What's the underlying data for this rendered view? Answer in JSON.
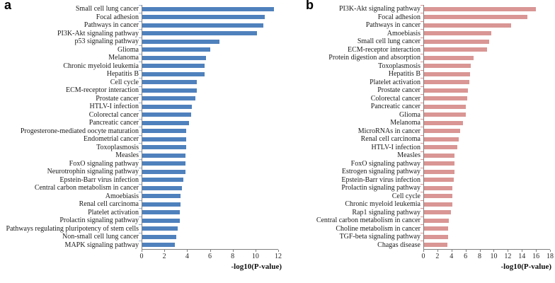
{
  "chart_data": [
    {
      "type": "bar",
      "orientation": "horizontal",
      "panel_label": "a",
      "xlabel": "-log10(P-value)",
      "xlim": [
        0,
        12
      ],
      "x_ticks": [
        0,
        2,
        4,
        6,
        8,
        10,
        12
      ],
      "bar_color": "#4f81bd",
      "category_tick_color": "#9ab3d2",
      "grid": false,
      "legend": null,
      "categories": [
        "Small cell lung cancer",
        "Focal adhesion",
        "Pathways in cancer",
        "PI3K-Akt signaling pathway",
        "p53 signaling pathway",
        "Glioma",
        "Melanoma",
        "Chronic myeloid leukemia",
        "Hepatitis B",
        "Cell cycle",
        "ECM-receptor interaction",
        "Prostate cancer",
        "HTLV-I infection",
        "Colorectal cancer",
        "Pancreatic cancer",
        "Progesterone-mediated oocyte maturation",
        "Endometrial cancer",
        "Toxoplasmosis",
        "Measles",
        "FoxO signaling pathway",
        "Neurotrophin signaling pathway",
        "Epstein-Barr virus infection",
        "Central carbon metabolism in cancer",
        "Amoebiasis",
        "Renal cell carcinoma",
        "Platelet activation",
        "Prolactin signaling pathway",
        "Pathways regulating pluripotency of stem cells",
        "Non-small cell lung cancer",
        "MAPK signaling pathway"
      ],
      "values": [
        11.6,
        10.8,
        10.7,
        10.1,
        6.8,
        6.0,
        5.6,
        5.5,
        5.5,
        4.8,
        4.8,
        4.7,
        4.4,
        4.3,
        4.1,
        3.9,
        3.9,
        3.9,
        3.8,
        3.8,
        3.8,
        3.6,
        3.5,
        3.4,
        3.4,
        3.3,
        3.3,
        3.1,
        3.0,
        2.9
      ]
    },
    {
      "type": "bar",
      "orientation": "horizontal",
      "panel_label": "b",
      "xlabel": "-log10(P-value)",
      "xlim": [
        0,
        18
      ],
      "x_ticks": [
        0,
        2,
        4,
        6,
        8,
        10,
        12,
        14,
        16,
        18
      ],
      "bar_color": "#d99694",
      "category_tick_color": "#d99694",
      "grid": false,
      "legend": null,
      "categories": [
        "PI3K-Akt signaling pathway",
        "Focal adhesion",
        "Pathways in cancer",
        "Amoebiasis",
        "Small cell lung cancer",
        "ECM-receptor interaction",
        "Protein digestion and absorption",
        "Toxoplasmosis",
        "Hepatitis B",
        "Platelet activation",
        "Prostate cancer",
        "Colorectal cancer",
        "Pancreatic cancer",
        "Glioma",
        "Melanoma",
        "MicroRNAs in cancer",
        "Renal cell carcinoma",
        "HTLV-I infection",
        "Measles",
        "FoxO signaling pathway",
        "Estrogen signaling pathway",
        "Epstein-Barr virus infection",
        "Prolactin signaling pathway",
        "Cell cycle",
        "Chronic myeloid leukemia",
        "Rap1 signaling pathway",
        "Central carbon metabolism in cancer",
        "Choline metabolism in cancer",
        "TGF-beta signaling pathway",
        "Chagas disease"
      ],
      "values": [
        16.0,
        14.8,
        12.4,
        9.6,
        9.3,
        9.0,
        7.1,
        6.7,
        6.6,
        6.5,
        6.3,
        6.2,
        6.0,
        6.0,
        5.6,
        5.2,
        5.0,
        4.8,
        4.3,
        4.3,
        4.3,
        4.2,
        4.0,
        4.0,
        4.0,
        3.8,
        3.5,
        3.4,
        3.4,
        3.3
      ]
    }
  ]
}
